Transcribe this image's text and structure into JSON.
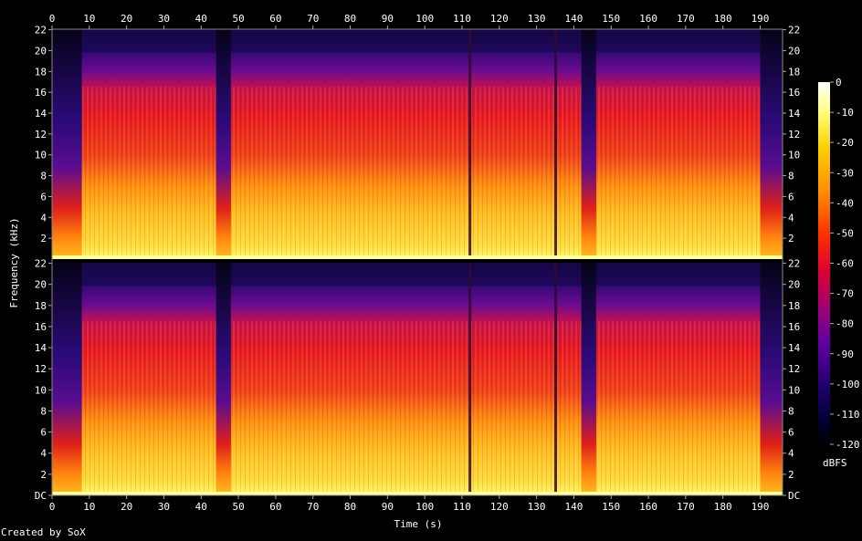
{
  "chart_data": {
    "type": "heatmap",
    "xlabel": "Time (s)",
    "ylabel": "Frequency (kHz)",
    "colorbar_label": "dBFS",
    "x_ticks": [
      0,
      10,
      20,
      30,
      40,
      50,
      60,
      70,
      80,
      90,
      100,
      110,
      120,
      130,
      140,
      150,
      160,
      170,
      180,
      190
    ],
    "xlim": [
      0,
      196
    ],
    "channels": [
      {
        "y_ticks": [
          "22",
          "20",
          "18",
          "16",
          "14",
          "12",
          "10",
          "8",
          "6",
          "4",
          "2"
        ]
      },
      {
        "y_ticks": [
          "22",
          "20",
          "18",
          "16",
          "14",
          "12",
          "10",
          "8",
          "6",
          "4",
          "2",
          "DC"
        ]
      }
    ],
    "ylim_khz": [
      0,
      22.05
    ],
    "colorbar_ticks": [
      "0",
      "-10",
      "-20",
      "-30",
      "-40",
      "-50",
      "-60",
      "-70",
      "-80",
      "-90",
      "-100",
      "-110",
      "-120"
    ],
    "colorbar_range_dbfs": [
      -120,
      0
    ],
    "quiet_segments_s": [
      [
        0,
        8
      ],
      [
        44,
        48
      ],
      [
        142,
        146
      ],
      [
        190,
        196
      ]
    ],
    "brief_drops_s": [
      112,
      135
    ]
  },
  "footer": {
    "credit": "Created by SoX"
  },
  "colors": {
    "background": "#000000",
    "text": "#ffffff",
    "axis": "#888888"
  }
}
